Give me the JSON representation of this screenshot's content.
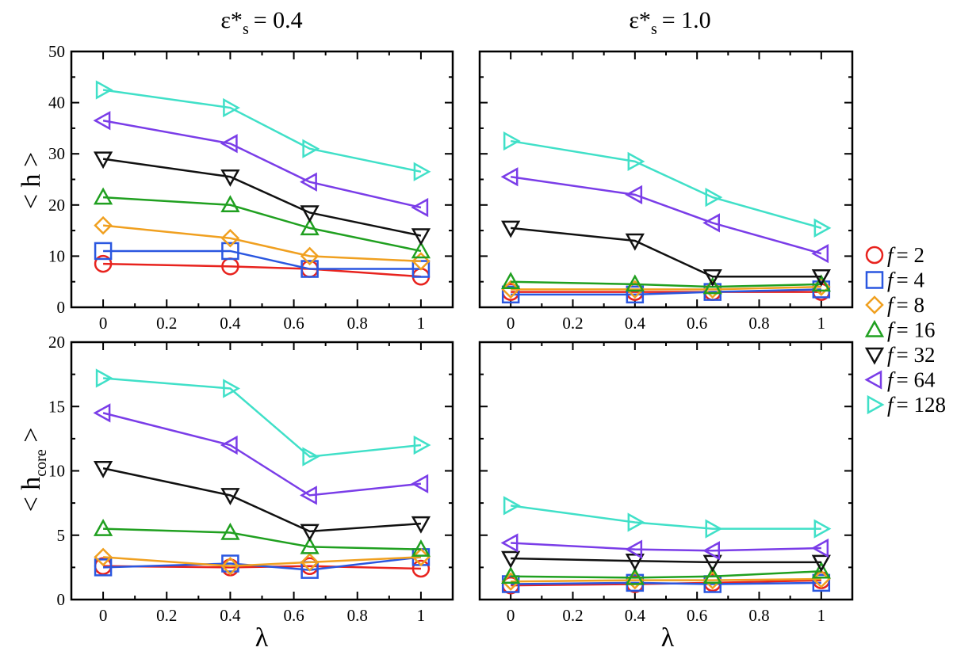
{
  "chart_data": {
    "type": "line",
    "x": [
      0,
      0.4,
      0.65,
      1
    ],
    "columns": [
      {
        "title_main": "ε*",
        "title_sub": "s",
        "title_value": "= 0.4"
      },
      {
        "title_main": "ε*",
        "title_sub": "s",
        "title_value": "= 1.0"
      }
    ],
    "xlabel": "λ",
    "xlim": [
      -0.1,
      1.1
    ],
    "xticks": [
      "0",
      "0.2",
      "0.4",
      "0.6",
      "0.8",
      "1"
    ],
    "rows": [
      {
        "ylabel_main": "< h >",
        "ylabel_sub": "",
        "ylim": [
          0,
          50
        ],
        "yticks": [
          "0",
          "10",
          "20",
          "30",
          "40",
          "50"
        ]
      },
      {
        "ylabel_main": "< h",
        "ylabel_sub": "core",
        "ylabel_tail": " >",
        "ylim": [
          0,
          20
        ],
        "yticks": [
          "0",
          "5",
          "10",
          "15",
          "20"
        ]
      }
    ],
    "legend": {
      "placement": "right",
      "entries": [
        {
          "prefix": "f",
          "label": "= 2"
        },
        {
          "prefix": "f",
          "label": "= 4"
        },
        {
          "prefix": "f",
          "label": "= 8"
        },
        {
          "prefix": "f",
          "label": "= 16"
        },
        {
          "prefix": "f",
          "label": "= 32"
        },
        {
          "prefix": "f",
          "label": "= 64"
        },
        {
          "prefix": "f",
          "label": "= 128"
        }
      ]
    },
    "series_style": [
      {
        "color": "#e8231e",
        "marker": "circle"
      },
      {
        "color": "#2a57e0",
        "marker": "square"
      },
      {
        "color": "#f0a020",
        "marker": "diamond"
      },
      {
        "color": "#20a020",
        "marker": "triangle-up"
      },
      {
        "color": "#111111",
        "marker": "triangle-down"
      },
      {
        "color": "#7a3de8",
        "marker": "triangle-left"
      },
      {
        "color": "#40e0c8",
        "marker": "triangle-right"
      }
    ],
    "panels": [
      {
        "row": 0,
        "col": 0,
        "series": [
          [
            8.5,
            8.0,
            7.5,
            6.0
          ],
          [
            11.0,
            11.0,
            7.5,
            7.5
          ],
          [
            16.0,
            13.5,
            10.0,
            9.0
          ],
          [
            21.5,
            20.0,
            15.5,
            11.0
          ],
          [
            29.0,
            25.5,
            18.5,
            14.0
          ],
          [
            36.5,
            32.0,
            24.5,
            19.5
          ],
          [
            42.5,
            39.0,
            31.0,
            26.5
          ]
        ]
      },
      {
        "row": 0,
        "col": 1,
        "series": [
          [
            3.0,
            3.0,
            3.0,
            3.0
          ],
          [
            2.5,
            2.5,
            3.0,
            3.5
          ],
          [
            3.5,
            3.5,
            3.5,
            4.0
          ],
          [
            5.0,
            4.5,
            4.0,
            4.5
          ],
          [
            15.5,
            13.0,
            6.0,
            6.0
          ],
          [
            25.5,
            22.0,
            16.5,
            10.5
          ],
          [
            32.5,
            28.5,
            21.5,
            15.5
          ]
        ]
      },
      {
        "row": 1,
        "col": 0,
        "series": [
          [
            2.6,
            2.5,
            2.6,
            2.4
          ],
          [
            2.5,
            2.8,
            2.3,
            3.3
          ],
          [
            3.3,
            2.6,
            2.9,
            3.3
          ],
          [
            5.5,
            5.2,
            4.1,
            3.9
          ],
          [
            10.2,
            8.1,
            5.3,
            5.9
          ],
          [
            14.5,
            12.0,
            8.1,
            9.0
          ],
          [
            17.2,
            16.4,
            11.1,
            12.0
          ]
        ]
      },
      {
        "row": 1,
        "col": 1,
        "series": [
          [
            1.1,
            1.2,
            1.3,
            1.5
          ],
          [
            1.2,
            1.3,
            1.2,
            1.3
          ],
          [
            1.4,
            1.5,
            1.5,
            1.6
          ],
          [
            1.8,
            1.7,
            1.8,
            2.2
          ],
          [
            3.2,
            3.0,
            2.9,
            2.9
          ],
          [
            4.4,
            3.9,
            3.8,
            4.0
          ],
          [
            7.3,
            6.0,
            5.5,
            5.5
          ]
        ]
      }
    ]
  }
}
